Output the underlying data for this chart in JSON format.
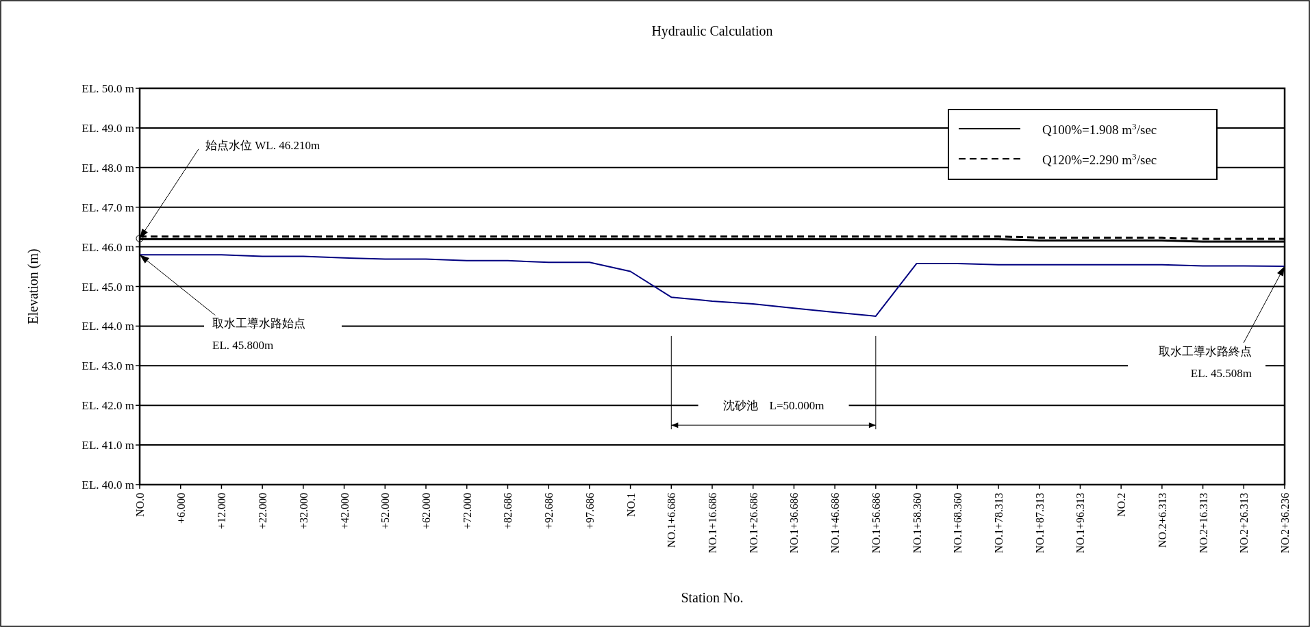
{
  "chart_data": {
    "type": "line",
    "title": "Hydraulic Calculation",
    "xlabel": "Station No.",
    "ylabel": "Elevation (m)",
    "categories": [
      "NO.0",
      "+6.000",
      "+12.000",
      "+22.000",
      "+32.000",
      "+42.000",
      "+52.000",
      "+62.000",
      "+72.000",
      "+82.686",
      "+92.686",
      "+97.686",
      "NO.1",
      "NO.1+6.686",
      "NO.1+16.686",
      "NO.1+26.686",
      "NO.1+36.686",
      "NO.1+46.686",
      "NO.1+56.686",
      "NO.1+58.360",
      "NO.1+68.360",
      "NO.1+78.313",
      "NO.1+87.313",
      "NO.1+96.313",
      "NO.2",
      "NO.2+6.313",
      "NO.2+16.313",
      "NO.2+26.313",
      "NO.2+36.236"
    ],
    "series": [
      {
        "color": "#000080",
        "line_style": "solid",
        "values": [
          45.8,
          45.8,
          45.8,
          45.76,
          45.76,
          45.72,
          45.69,
          45.69,
          45.65,
          45.65,
          45.61,
          45.61,
          45.38,
          44.73,
          44.63,
          44.56,
          44.45,
          44.35,
          44.25,
          45.58,
          45.58,
          45.55,
          45.55,
          45.55,
          45.55,
          45.55,
          45.52,
          45.52,
          45.51
        ]
      },
      {
        "name": "Q100%=1.908 m$^{3}$/sec",
        "color": "#000000",
        "line_style": "solid",
        "values": [
          46.19,
          46.19,
          46.19,
          46.19,
          46.19,
          46.19,
          46.19,
          46.19,
          46.19,
          46.19,
          46.19,
          46.19,
          46.19,
          46.19,
          46.19,
          46.19,
          46.19,
          46.19,
          46.19,
          46.19,
          46.19,
          46.19,
          46.16,
          46.16,
          46.16,
          46.16,
          46.13,
          46.13,
          46.13
        ]
      },
      {
        "name": "Q120%=2.290 m$^{3}$/sec",
        "color": "#000000",
        "line_style": "dashed",
        "values": [
          46.26,
          46.26,
          46.26,
          46.26,
          46.26,
          46.26,
          46.26,
          46.26,
          46.26,
          46.26,
          46.26,
          46.26,
          46.26,
          46.26,
          46.26,
          46.26,
          46.26,
          46.26,
          46.26,
          46.26,
          46.26,
          46.26,
          46.23,
          46.23,
          46.23,
          46.23,
          46.2,
          46.2,
          46.2
        ]
      }
    ],
    "ylim": [
      40,
      50
    ],
    "yticks": [
      {
        "value": 40,
        "label": "EL. 40.0 m"
      },
      {
        "value": 41,
        "label": "EL. 41.0 m"
      },
      {
        "value": 42,
        "label": "EL. 42.0 m"
      },
      {
        "value": 43,
        "label": "EL. 43.0 m"
      },
      {
        "value": 44,
        "label": "EL. 44.0 m"
      },
      {
        "value": 45,
        "label": "EL. 45.0 m"
      },
      {
        "value": 46,
        "label": "EL. 46.0 m"
      },
      {
        "value": 47,
        "label": "EL. 47.0 m"
      },
      {
        "value": 48,
        "label": "EL. 48.0 m"
      },
      {
        "value": 49,
        "label": "EL. 49.0 m"
      },
      {
        "value": 50,
        "label": "EL. 50.0 m"
      }
    ],
    "grid": "y",
    "legend": "top right",
    "marker": "none",
    "annotations": [
      {
        "text": "始点水位 WL. 46.210m",
        "x": "NO.0",
        "y": 46.21
      },
      {
        "text": "取水工導水路始点\nEL. 45.800m",
        "x": "NO.0",
        "y": 45.8
      },
      {
        "text": "取水工導水路終点\nEL. 45.508m",
        "x": "NO.2+36.236",
        "y": 45.508
      }
    ],
    "bands": [
      {
        "axis": "x",
        "from": "NO.1+6.686",
        "to": "NO.1+56.686",
        "label": "沈砂池　L=50.000m"
      }
    ]
  }
}
